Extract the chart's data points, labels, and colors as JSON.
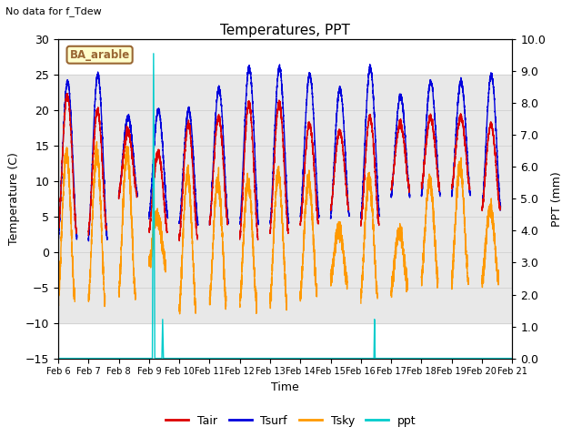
{
  "title": "Temperatures, PPT",
  "subtitle": "No data for f_Tdew",
  "box_label": "BA_arable",
  "xlabel": "Time",
  "ylabel_left": "Temperature (C)",
  "ylabel_right": "PPT (mm)",
  "ylim_left": [
    -15,
    30
  ],
  "ylim_right": [
    0.0,
    10.0
  ],
  "yticks_left": [
    -15,
    -10,
    -5,
    0,
    5,
    10,
    15,
    20,
    25,
    30
  ],
  "yticks_right": [
    0.0,
    1.0,
    2.0,
    3.0,
    4.0,
    5.0,
    6.0,
    7.0,
    8.0,
    9.0,
    10.0
  ],
  "xtick_labels": [
    "Feb 6",
    "Feb 7",
    "Feb 8",
    "Feb 9",
    "Feb 10",
    "Feb 11",
    "Feb 12",
    "Feb 13",
    "Feb 14",
    "Feb 15",
    "Feb 16",
    "Feb 17",
    "Feb 18",
    "Feb 19",
    "Feb 20",
    "Feb 21"
  ],
  "colors": {
    "Tair": "#dd0000",
    "Tsurf": "#0000dd",
    "Tsky": "#ff9900",
    "ppt": "#00cccc",
    "bg_gray": "#e8e8e8",
    "box_border": "#996633",
    "box_bg": "#ffffcc",
    "grid": "#cccccc"
  },
  "gray_band": [
    -10,
    25
  ]
}
